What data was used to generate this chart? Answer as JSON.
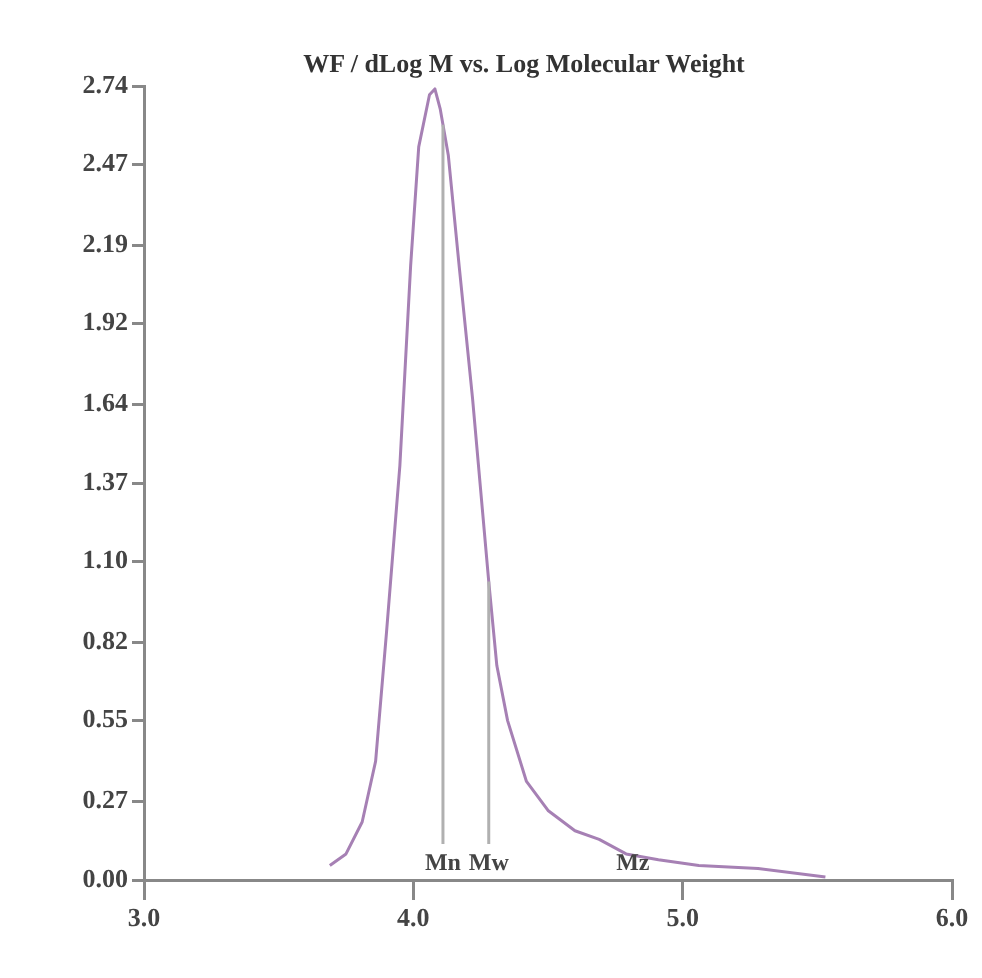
{
  "chart_data": {
    "type": "line",
    "title": "WF / dLog M vs. Log Molecular Weight",
    "x": [
      3.69,
      3.75,
      3.81,
      3.86,
      3.9,
      3.95,
      3.99,
      4.02,
      4.06,
      4.08,
      4.1,
      4.13,
      4.17,
      4.22,
      4.28,
      4.31,
      4.35,
      4.42,
      4.5,
      4.6,
      4.69,
      4.79,
      4.91,
      5.06,
      5.28,
      5.53
    ],
    "series": [
      {
        "color": "#a680b4",
        "values": [
          0.05,
          0.09,
          0.2,
          0.41,
          0.85,
          1.43,
          2.12,
          2.53,
          2.71,
          2.73,
          2.66,
          2.5,
          2.12,
          1.66,
          1.03,
          0.74,
          0.55,
          0.34,
          0.24,
          0.17,
          0.14,
          0.09,
          0.07,
          0.05,
          0.04,
          0.01
        ]
      }
    ],
    "xlim": [
      3,
      6
    ],
    "xticks": [
      {
        "value": 3,
        "label": "3.0"
      },
      {
        "value": 4,
        "label": "4.0"
      },
      {
        "value": 5,
        "label": "5.0"
      },
      {
        "value": 6,
        "label": "6.0"
      }
    ],
    "ylim": [
      0,
      2.74
    ],
    "yticks": [
      {
        "value": 0,
        "label": "0.00"
      },
      0.27,
      0.55,
      0.82,
      {
        "value": 1.1,
        "label": "1.10"
      },
      1.37,
      1.64,
      1.92,
      2.19,
      2.47,
      2.74
    ],
    "ref_lines": [
      {
        "axis": "x",
        "value": 4.11,
        "label": "Mn",
        "color": "#b0b0b0"
      },
      {
        "axis": "x",
        "value": 4.28,
        "label": "Mw",
        "color": "#b0b0b0"
      }
    ],
    "annotations": [
      "Mz"
    ],
    "grid": false,
    "legend": false,
    "marker": "none",
    "line_style": "solid"
  }
}
